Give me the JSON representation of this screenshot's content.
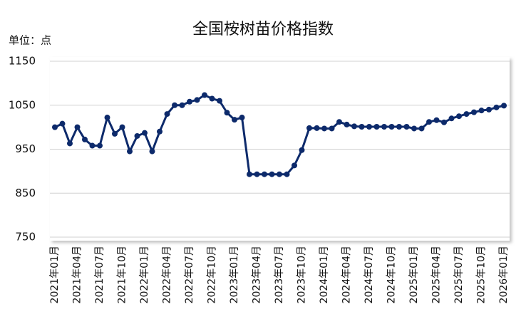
{
  "chart_data": {
    "type": "line",
    "title": "全国桉树苗价格指数",
    "unit_label": "单位：点",
    "categories": [
      "2021年01月",
      null,
      null,
      "2021年04月",
      null,
      null,
      "2021年07月",
      null,
      null,
      "2021年10月",
      null,
      null,
      "2022年01月",
      null,
      null,
      "2022年04月",
      null,
      null,
      "2022年07月",
      null,
      null,
      "2022年10月",
      null,
      null,
      "2023年01月",
      null,
      null,
      "2023年04月",
      null,
      null,
      "2023年07月",
      null,
      null,
      "2023年10月",
      null,
      null,
      "2024年01月",
      null,
      null,
      "2024年04月",
      null,
      null,
      "2024年07月",
      null,
      null,
      "2024年10月",
      null,
      null,
      "2025年01月",
      null,
      null,
      "2025年04月",
      null,
      null,
      "2025年07月",
      null,
      null,
      "2025年10月",
      null,
      null,
      "2026年01月"
    ],
    "series": [
      {
        "color": "#0d2a6b",
        "values": [
          1000,
          1008,
          963,
          1000,
          972,
          958,
          958,
          1022,
          985,
          1000,
          945,
          980,
          987,
          945,
          990,
          1030,
          1050,
          1050,
          1058,
          1062,
          1073,
          1065,
          1060,
          1033,
          1017,
          1022,
          893,
          893,
          893,
          893,
          893,
          893,
          913,
          948,
          998,
          998,
          997,
          997,
          1012,
          1006,
          1002,
          1001,
          1001,
          1001,
          1001,
          1001,
          1001,
          1001,
          997,
          997,
          1012,
          1016,
          1011,
          1020,
          1025,
          1030,
          1034,
          1038,
          1040,
          1045,
          1049
        ]
      }
    ],
    "ylim": [
      750,
      1150
    ],
    "yticks": [
      750,
      850,
      950,
      1050,
      1150
    ],
    "grid": true
  }
}
